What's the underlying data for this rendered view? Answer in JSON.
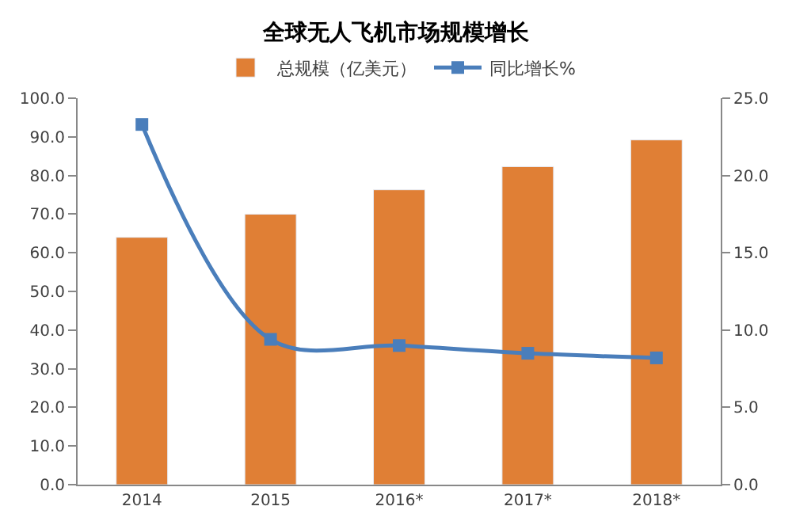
{
  "chart_data": {
    "type": "bar",
    "title": "全球无人飞机市场规模增长",
    "categories": [
      "2014",
      "2015",
      "2016*",
      "2017*",
      "2018*"
    ],
    "series": [
      {
        "name": "总规模（亿美元）",
        "color": "#e07f35",
        "values": [
          64.0,
          70.0,
          76.3,
          82.3,
          89.2
        ]
      },
      {
        "name": "同比增长%",
        "color": "#4a7ebb",
        "type": "line",
        "axis": "y2",
        "marker": "square",
        "values": [
          23.3,
          9.4,
          9.0,
          8.5,
          8.2
        ]
      }
    ],
    "ylim": [
      0,
      100
    ],
    "yticks": [
      {
        "value": 0,
        "label": "0.0"
      },
      {
        "value": 10,
        "label": "10.0"
      },
      {
        "value": 20,
        "label": "20.0"
      },
      {
        "value": 30,
        "label": "30.0"
      },
      {
        "value": 40,
        "label": "40.0"
      },
      {
        "value": 50,
        "label": "50.0"
      },
      {
        "value": 60,
        "label": "60.0"
      },
      {
        "value": 70,
        "label": "70.0"
      },
      {
        "value": 80,
        "label": "80.0"
      },
      {
        "value": 90,
        "label": "90.0"
      },
      {
        "value": 100,
        "label": "100.0"
      }
    ],
    "y2lim": [
      0,
      25
    ],
    "y2ticks": [
      {
        "value": 0,
        "label": "0.0"
      },
      {
        "value": 5,
        "label": "5.0"
      },
      {
        "value": 10,
        "label": "10.0"
      },
      {
        "value": 15,
        "label": "15.0"
      },
      {
        "value": 20,
        "label": "20.0"
      },
      {
        "value": 25,
        "label": "25.0"
      }
    ],
    "legend": "top"
  }
}
